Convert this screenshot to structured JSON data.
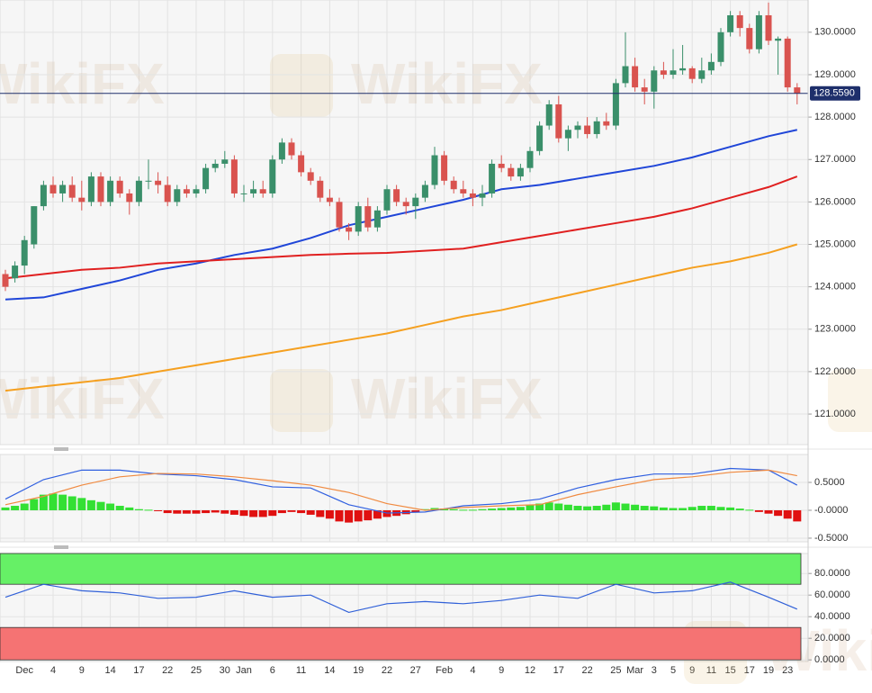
{
  "watermark": "WikiFX",
  "chart_data": [
    {
      "type": "candlestick",
      "categories": [
        null,
        null,
        "Dec",
        null,
        null,
        "4",
        null,
        null,
        "9",
        null,
        null,
        "14",
        null,
        null,
        "17",
        null,
        null,
        "22",
        null,
        null,
        "25",
        null,
        null,
        "30",
        null,
        "Jan",
        null,
        null,
        "6",
        null,
        null,
        "11",
        null,
        null,
        "14",
        null,
        null,
        "19",
        null,
        null,
        "22",
        null,
        null,
        "27",
        null,
        null,
        "Feb",
        null,
        null,
        "4",
        null,
        null,
        "9",
        null,
        null,
        "12",
        null,
        null,
        "17",
        null,
        null,
        "22",
        null,
        null,
        "25",
        null,
        "Mar",
        null,
        "3",
        null,
        "5",
        null,
        "9",
        null,
        "11",
        null,
        "15",
        null,
        "17",
        null,
        "19",
        null,
        "23",
        null
      ],
      "ohlc": [
        [
          124.3,
          124.4,
          123.9,
          124.0
        ],
        [
          124.2,
          124.6,
          124.1,
          124.5
        ],
        [
          124.5,
          125.2,
          124.3,
          125.1
        ],
        [
          125.0,
          125.9,
          124.9,
          125.9
        ],
        [
          125.9,
          126.5,
          125.8,
          126.4
        ],
        [
          126.4,
          126.6,
          126.1,
          126.2
        ],
        [
          126.2,
          126.5,
          126.0,
          126.4
        ],
        [
          126.4,
          126.6,
          126.0,
          126.1
        ],
        [
          126.1,
          126.5,
          125.8,
          126.0
        ],
        [
          126.0,
          126.7,
          125.9,
          126.6
        ],
        [
          126.6,
          126.7,
          125.9,
          126.0
        ],
        [
          126.0,
          126.6,
          125.9,
          126.5
        ],
        [
          126.5,
          126.6,
          126.1,
          126.2
        ],
        [
          126.2,
          126.3,
          125.7,
          126.0
        ],
        [
          126.0,
          126.6,
          125.9,
          126.5
        ],
        [
          126.5,
          127.0,
          126.3,
          126.5
        ],
        [
          126.5,
          126.7,
          126.2,
          126.4
        ],
        [
          126.4,
          126.6,
          125.9,
          126.0
        ],
        [
          126.0,
          126.4,
          125.9,
          126.3
        ],
        [
          126.3,
          126.4,
          126.1,
          126.2
        ],
        [
          126.2,
          126.4,
          126.1,
          126.3
        ],
        [
          126.3,
          126.9,
          126.2,
          126.8
        ],
        [
          126.8,
          127.0,
          126.7,
          126.9
        ],
        [
          126.9,
          127.2,
          126.8,
          127.0
        ],
        [
          127.0,
          127.1,
          126.1,
          126.2
        ],
        [
          126.2,
          126.4,
          126.0,
          126.2
        ],
        [
          126.2,
          126.5,
          126.1,
          126.3
        ],
        [
          126.3,
          126.5,
          126.1,
          126.2
        ],
        [
          126.2,
          127.1,
          126.1,
          127.0
        ],
        [
          127.0,
          127.5,
          126.9,
          127.4
        ],
        [
          127.4,
          127.5,
          127.0,
          127.1
        ],
        [
          127.1,
          127.2,
          126.6,
          126.7
        ],
        [
          126.7,
          126.8,
          126.4,
          126.5
        ],
        [
          126.5,
          126.6,
          126.0,
          126.1
        ],
        [
          126.1,
          126.3,
          125.9,
          126.0
        ],
        [
          126.0,
          126.1,
          125.3,
          125.4
        ],
        [
          125.4,
          125.5,
          125.1,
          125.3
        ],
        [
          125.3,
          126.0,
          125.2,
          125.9
        ],
        [
          125.9,
          126.1,
          125.3,
          125.4
        ],
        [
          125.4,
          125.9,
          125.3,
          125.8
        ],
        [
          125.8,
          126.4,
          125.7,
          126.3
        ],
        [
          126.3,
          126.4,
          125.9,
          126.0
        ],
        [
          126.0,
          126.1,
          125.7,
          125.9
        ],
        [
          125.9,
          126.2,
          125.6,
          126.1
        ],
        [
          126.1,
          126.5,
          126.0,
          126.4
        ],
        [
          126.4,
          127.3,
          126.3,
          127.1
        ],
        [
          127.1,
          127.2,
          126.4,
          126.5
        ],
        [
          126.5,
          126.6,
          126.2,
          126.3
        ],
        [
          126.3,
          126.5,
          126.1,
          126.2
        ],
        [
          126.2,
          126.3,
          125.9,
          126.1
        ],
        [
          126.1,
          126.4,
          125.9,
          126.2
        ],
        [
          126.2,
          127.0,
          126.1,
          126.9
        ],
        [
          126.9,
          127.1,
          126.7,
          126.8
        ],
        [
          126.8,
          126.9,
          126.5,
          126.6
        ],
        [
          126.6,
          126.9,
          126.5,
          126.8
        ],
        [
          126.8,
          127.3,
          126.7,
          127.2
        ],
        [
          127.2,
          127.9,
          127.1,
          127.8
        ],
        [
          127.8,
          128.4,
          127.7,
          128.3
        ],
        [
          128.3,
          128.5,
          127.4,
          127.5
        ],
        [
          127.5,
          127.8,
          127.2,
          127.7
        ],
        [
          127.7,
          127.9,
          127.5,
          127.8
        ],
        [
          127.8,
          128.0,
          127.5,
          127.6
        ],
        [
          127.6,
          128.0,
          127.5,
          127.9
        ],
        [
          127.9,
          128.1,
          127.7,
          127.8
        ],
        [
          127.8,
          128.9,
          127.7,
          128.8
        ],
        [
          128.8,
          130.0,
          128.7,
          129.2
        ],
        [
          129.2,
          129.4,
          128.6,
          128.7
        ],
        [
          128.7,
          128.9,
          128.3,
          128.6
        ],
        [
          128.6,
          129.2,
          128.2,
          129.1
        ],
        [
          129.1,
          129.3,
          128.9,
          129.0
        ],
        [
          129.0,
          129.6,
          128.9,
          129.1
        ],
        [
          129.1,
          129.7,
          129.0,
          129.15
        ],
        [
          129.15,
          129.2,
          128.8,
          128.9
        ],
        [
          128.9,
          129.4,
          128.8,
          129.1
        ],
        [
          129.1,
          129.5,
          129.0,
          129.3
        ],
        [
          129.3,
          130.1,
          129.2,
          130.0
        ],
        [
          130.0,
          130.5,
          129.9,
          130.4
        ],
        [
          130.4,
          130.5,
          129.9,
          130.1
        ],
        [
          130.1,
          130.2,
          129.5,
          129.6
        ],
        [
          129.6,
          130.5,
          129.5,
          130.4
        ],
        [
          130.4,
          130.7,
          129.7,
          129.8
        ],
        [
          129.8,
          129.9,
          129.0,
          129.85
        ],
        [
          129.85,
          129.9,
          128.6,
          128.7
        ],
        [
          128.7,
          128.8,
          128.3,
          128.559
        ]
      ],
      "up_color": "#3a8f6a",
      "down_color": "#d9534f",
      "series": [
        {
          "color": "#2046d8",
          "x": [
            0,
            4,
            8,
            12,
            16,
            20,
            24,
            28,
            32,
            36,
            40,
            44,
            48,
            52,
            56,
            60,
            64,
            68,
            72,
            76,
            80,
            83
          ],
          "values": [
            123.7,
            123.75,
            123.95,
            124.15,
            124.4,
            124.55,
            124.75,
            124.9,
            125.15,
            125.45,
            125.65,
            125.85,
            126.05,
            126.3,
            126.4,
            126.55,
            126.7,
            126.85,
            127.05,
            127.3,
            127.55,
            127.7
          ]
        },
        {
          "color": "#e02020",
          "x": [
            0,
            4,
            8,
            12,
            16,
            20,
            24,
            28,
            32,
            36,
            40,
            44,
            48,
            52,
            56,
            60,
            64,
            68,
            72,
            76,
            80,
            83
          ],
          "values": [
            124.2,
            124.3,
            124.4,
            124.45,
            124.55,
            124.6,
            124.65,
            124.7,
            124.75,
            124.78,
            124.8,
            124.85,
            124.9,
            125.05,
            125.2,
            125.35,
            125.5,
            125.65,
            125.85,
            126.1,
            126.35,
            126.6
          ]
        },
        {
          "color": "#f5a020",
          "x": [
            0,
            4,
            8,
            12,
            16,
            20,
            24,
            28,
            32,
            36,
            40,
            44,
            48,
            52,
            56,
            60,
            64,
            68,
            72,
            76,
            80,
            83
          ],
          "values": [
            121.55,
            121.65,
            121.75,
            121.85,
            122.0,
            122.15,
            122.3,
            122.45,
            122.6,
            122.75,
            122.9,
            123.1,
            123.3,
            123.45,
            123.65,
            123.85,
            124.05,
            124.25,
            124.45,
            124.6,
            124.8,
            125.0
          ]
        }
      ],
      "last_price": {
        "value": 128.559,
        "label": "128.5590"
      },
      "ylim": [
        120.28,
        130.76
      ],
      "yticks": [
        {
          "value": 130,
          "label": "130.0000"
        },
        {
          "value": 129,
          "label": "129.0000"
        },
        {
          "value": 128,
          "label": "128.0000"
        },
        {
          "value": 127,
          "label": "127.0000"
        },
        {
          "value": 126,
          "label": "126.0000"
        },
        {
          "value": 125,
          "label": "125.0000"
        },
        {
          "value": 124,
          "label": "124.0000"
        },
        {
          "value": 123,
          "label": "123.0000"
        },
        {
          "value": 122,
          "label": "122.0000"
        },
        {
          "value": 121,
          "label": "121.0000"
        }
      ],
      "grid": true
    },
    {
      "type": "macd",
      "histogram": [
        0.05,
        0.08,
        0.12,
        0.2,
        0.28,
        0.3,
        0.28,
        0.25,
        0.22,
        0.18,
        0.15,
        0.12,
        0.08,
        0.05,
        0.02,
        0.01,
        -0.01,
        -0.05,
        -0.06,
        -0.06,
        -0.06,
        -0.05,
        -0.04,
        -0.06,
        -0.08,
        -0.1,
        -0.12,
        -0.12,
        -0.1,
        -0.05,
        -0.03,
        -0.05,
        -0.08,
        -0.12,
        -0.15,
        -0.2,
        -0.22,
        -0.2,
        -0.18,
        -0.15,
        -0.12,
        -0.1,
        -0.07,
        -0.04,
        0.02,
        0.04,
        0.03,
        0.02,
        0.01,
        0.01,
        0.02,
        0.03,
        0.04,
        0.05,
        0.06,
        0.1,
        0.12,
        0.14,
        0.12,
        0.1,
        0.08,
        0.07,
        0.08,
        0.1,
        0.14,
        0.12,
        0.1,
        0.08,
        0.07,
        0.05,
        0.04,
        0.04,
        0.06,
        0.08,
        0.08,
        0.06,
        0.05,
        0.03,
        0.01,
        -0.03,
        -0.06,
        -0.1,
        -0.15,
        -0.2
      ],
      "up_color": "#33e033",
      "down_color": "#e01010",
      "series": [
        {
          "color": "#2f5fe0",
          "x": [
            0,
            4,
            8,
            12,
            16,
            20,
            24,
            28,
            32,
            36,
            40,
            44,
            48,
            52,
            56,
            60,
            64,
            68,
            72,
            76,
            80,
            83
          ],
          "values": [
            0.2,
            0.55,
            0.72,
            0.72,
            0.65,
            0.62,
            0.55,
            0.42,
            0.4,
            0.1,
            -0.05,
            -0.03,
            0.08,
            0.12,
            0.2,
            0.4,
            0.55,
            0.65,
            0.65,
            0.75,
            0.72,
            0.45
          ]
        },
        {
          "color": "#f08a40",
          "x": [
            0,
            4,
            8,
            12,
            16,
            20,
            24,
            28,
            32,
            36,
            40,
            44,
            48,
            52,
            56,
            60,
            64,
            68,
            72,
            76,
            80,
            83
          ],
          "values": [
            0.1,
            0.25,
            0.45,
            0.6,
            0.66,
            0.65,
            0.6,
            0.53,
            0.45,
            0.32,
            0.12,
            0.0,
            0.05,
            0.08,
            0.1,
            0.28,
            0.42,
            0.55,
            0.6,
            0.68,
            0.72,
            0.62
          ]
        }
      ],
      "ylim": [
        -0.565,
        1.0
      ],
      "yticks": [
        {
          "value": 0.5,
          "label": "0.5000"
        },
        {
          "value": 0,
          "label": "-0.0000"
        },
        {
          "value": -0.5,
          "label": "-0.5000"
        }
      ],
      "grid": true
    },
    {
      "type": "rsi",
      "bands": [
        {
          "from": 70,
          "to": 100,
          "color": "#66f066"
        },
        {
          "from": 0,
          "to": 30,
          "color": "#f57373"
        }
      ],
      "series": [
        {
          "color": "#3060d8",
          "x": [
            0,
            4,
            8,
            12,
            16,
            20,
            24,
            28,
            32,
            36,
            40,
            44,
            48,
            52,
            56,
            60,
            64,
            68,
            72,
            76,
            80,
            83
          ],
          "values": [
            58,
            70,
            64,
            62,
            57,
            58,
            64,
            58,
            60,
            44,
            52,
            54,
            52,
            55,
            60,
            57,
            70,
            62,
            64,
            72,
            58,
            47
          ]
        }
      ],
      "ylim": [
        -1.5,
        98.5
      ],
      "yticks": [
        {
          "value": 80,
          "label": "80.0000"
        },
        {
          "value": 60,
          "label": "60.0000"
        },
        {
          "value": 40,
          "label": "40.0000"
        },
        {
          "value": 20,
          "label": "20.0000"
        },
        {
          "value": 0,
          "label": "0.0000"
        }
      ],
      "grid": true
    }
  ]
}
